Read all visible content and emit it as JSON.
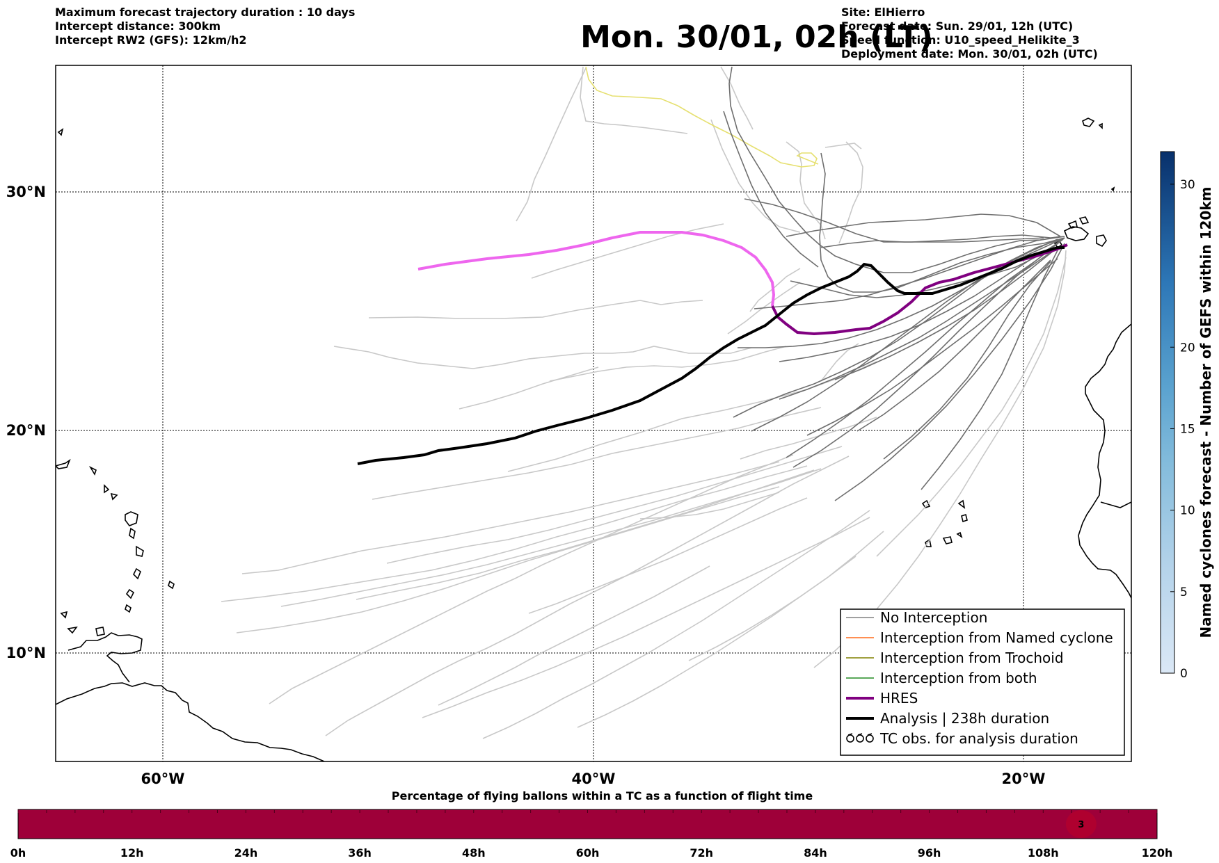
{
  "header_left": [
    "Maximum forecast trajectory duration : 10 days",
    "Intercept distance: 300km",
    "Intercept RW2 (GFS):  12km/h2"
  ],
  "header_right": [
    "Site: ElHierro",
    "Forecast date: Sun. 29/01, 12h (UTC)",
    "Speed function: U10_speed_Helikite_3",
    "Deployment date: Mon. 30/01, 02h (UTC)"
  ],
  "title": "Mon. 30/01, 02h (LT)",
  "map": {
    "lat_labels": [
      "30°N",
      "20°N",
      "10°N"
    ],
    "lon_labels": [
      "60°W",
      "40°W",
      "20°W"
    ],
    "lat_values": [
      30,
      20,
      10
    ],
    "lon_values": [
      -60,
      -40,
      -20
    ]
  },
  "legend": {
    "items": [
      {
        "label": "No Interception",
        "color": "#808080",
        "style": "line-thin"
      },
      {
        "label": "Interception from Named cyclone",
        "color": "#ff6a1a",
        "style": "line-thin"
      },
      {
        "label": "Interception from Trochoid",
        "color": "#808000",
        "style": "line-thin"
      },
      {
        "label": "Interception from both",
        "color": "#228b22",
        "style": "line-thin"
      },
      {
        "label": "HRES",
        "color": "#800080",
        "style": "line-thick"
      },
      {
        "label": "Analysis | 238h duration",
        "color": "#000000",
        "style": "line-thick"
      },
      {
        "label": "TC obs. for analysis duration",
        "color": "#000000",
        "style": "cyclone-symbol"
      }
    ]
  },
  "colorbar": {
    "label": "Named cyclones forecast - Number of GEFS within 120km",
    "ticks": [
      0,
      5,
      10,
      15,
      20,
      30
    ],
    "max": 32,
    "color_low": "#dbe8f6",
    "color_high": "#08306b"
  },
  "timeline": {
    "title": "Percentage of flying ballons within a TC as a function of flight time",
    "ticks": [
      "0h",
      "12h",
      "24h",
      "36h",
      "48h",
      "60h",
      "72h",
      "84h",
      "96h",
      "108h",
      "120h"
    ],
    "bar_color": "#9e0039",
    "marker_label": "3",
    "marker_hours": 112
  },
  "trajectory_colors": {
    "no_interception": "#6e6e6e",
    "light": "#c8c8c8",
    "hres": "#800080",
    "analysis": "#000000",
    "pink": "#ee66ee",
    "yellow": "#e6e070"
  }
}
